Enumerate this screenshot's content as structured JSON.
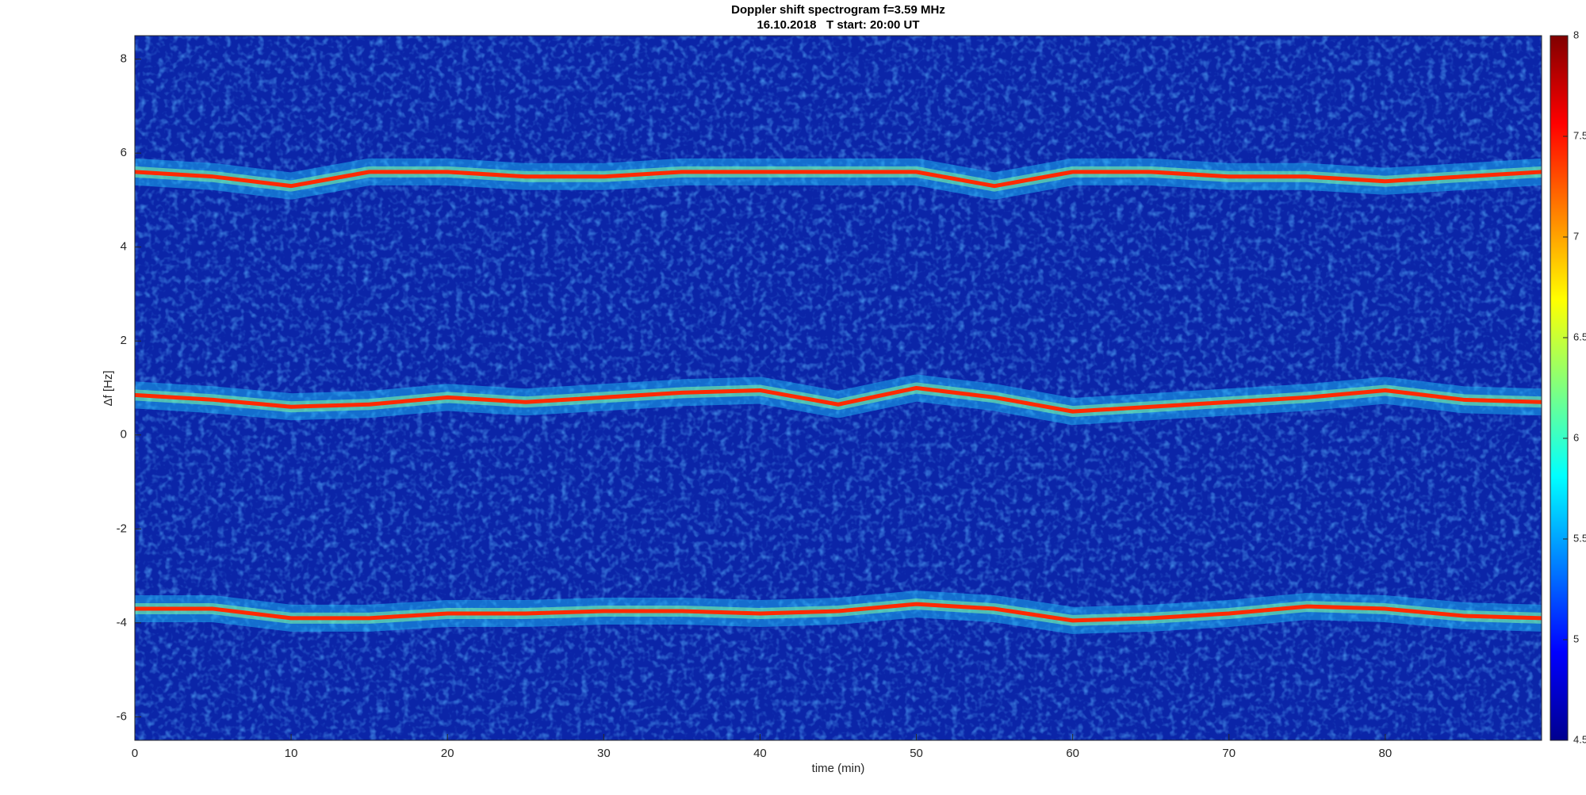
{
  "chart_data": {
    "type": "spectrogram",
    "title": "Doppler shift spectrogram f=3.59 MHz",
    "subtitle": "16.10.2018   T start: 20:00 UT",
    "x_label": "time (min)",
    "y_label": "Δf [Hz]",
    "xlim": [
      0,
      90
    ],
    "xticks": [
      0,
      10,
      20,
      30,
      40,
      50,
      60,
      70,
      80
    ],
    "ylim": [
      -6.5,
      8.5
    ],
    "yticks": [
      -6,
      -4,
      -2,
      0,
      2,
      4,
      6,
      8
    ],
    "x": [
      0,
      5,
      10,
      15,
      20,
      25,
      30,
      35,
      40,
      45,
      50,
      55,
      60,
      65,
      70,
      75,
      80,
      85,
      90
    ],
    "series": [
      {
        "color": "#ff2a00",
        "values": [
          5.6,
          5.5,
          5.3,
          5.6,
          5.6,
          5.5,
          5.5,
          5.6,
          5.6,
          5.6,
          5.6,
          5.3,
          5.6,
          5.6,
          5.5,
          5.5,
          5.4,
          5.5,
          5.6
        ]
      },
      {
        "color": "#ff2a00",
        "values": [
          0.85,
          0.75,
          0.6,
          0.65,
          0.8,
          0.7,
          0.8,
          0.9,
          0.95,
          0.65,
          1.0,
          0.8,
          0.5,
          0.6,
          0.7,
          0.8,
          0.95,
          0.75,
          0.7
        ]
      },
      {
        "color": "#ff2a00",
        "values": [
          -3.7,
          -3.7,
          -3.9,
          -3.9,
          -3.8,
          -3.8,
          -3.75,
          -3.75,
          -3.8,
          -3.75,
          -3.6,
          -3.7,
          -3.95,
          -3.9,
          -3.8,
          -3.65,
          -3.7,
          -3.85,
          -3.9
        ]
      }
    ],
    "colorbar": {
      "lim": [
        4.5,
        8
      ],
      "ticks": [
        4.5,
        5,
        5.5,
        6,
        6.5,
        7,
        7.5,
        8
      ]
    }
  }
}
